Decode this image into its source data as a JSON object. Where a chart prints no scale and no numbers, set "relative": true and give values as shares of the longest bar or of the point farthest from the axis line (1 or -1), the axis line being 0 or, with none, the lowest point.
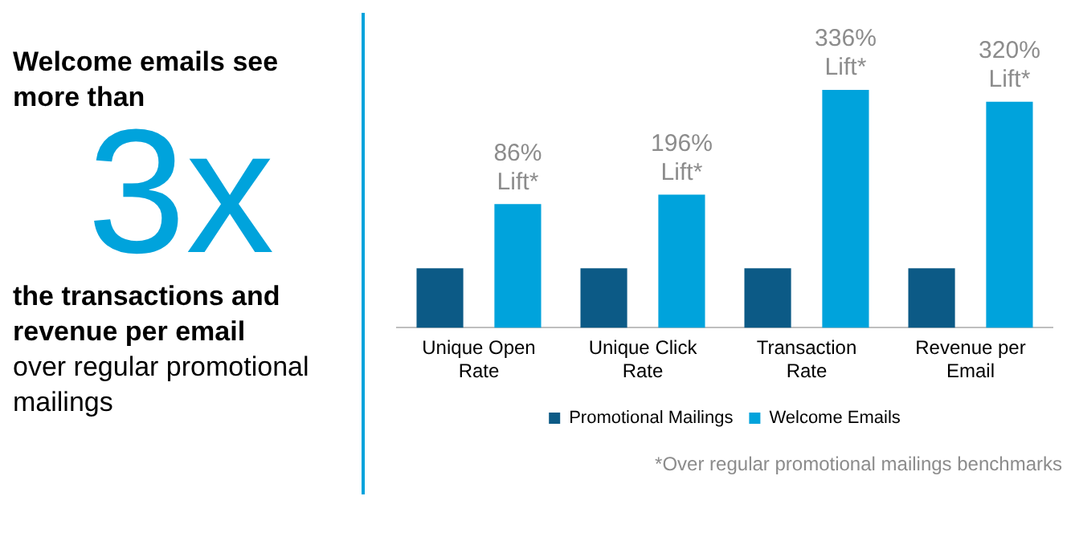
{
  "chart_data": [
    {
      "type": "other",
      "title": "Welcome emails see more than",
      "subtitle": "3x",
      "annotations": [
        "the transactions and revenue per email",
        "over regular promotional mailings"
      ]
    },
    {
      "type": "bar",
      "relative": true,
      "categories": [
        "Unique Open Rate",
        "Unique Click Rate",
        "Transaction Rate",
        "Revenue per Email"
      ],
      "series": [
        {
          "name": "Promotional Mailings",
          "color": "#0c5a86",
          "values": [
            0.25,
            0.25,
            0.25,
            0.25
          ]
        },
        {
          "name": "Welcome Emails",
          "color": "#00a3dc",
          "values": [
            0.52,
            0.56,
            1,
            0.95
          ]
        }
      ],
      "legend": "bottom",
      "grid": false,
      "annotations": [
        "86% Lift*",
        "196% Lift*",
        "336% Lift*",
        "320% Lift*",
        "*Over regular promotional mailings benchmarks"
      ]
    }
  ]
}
